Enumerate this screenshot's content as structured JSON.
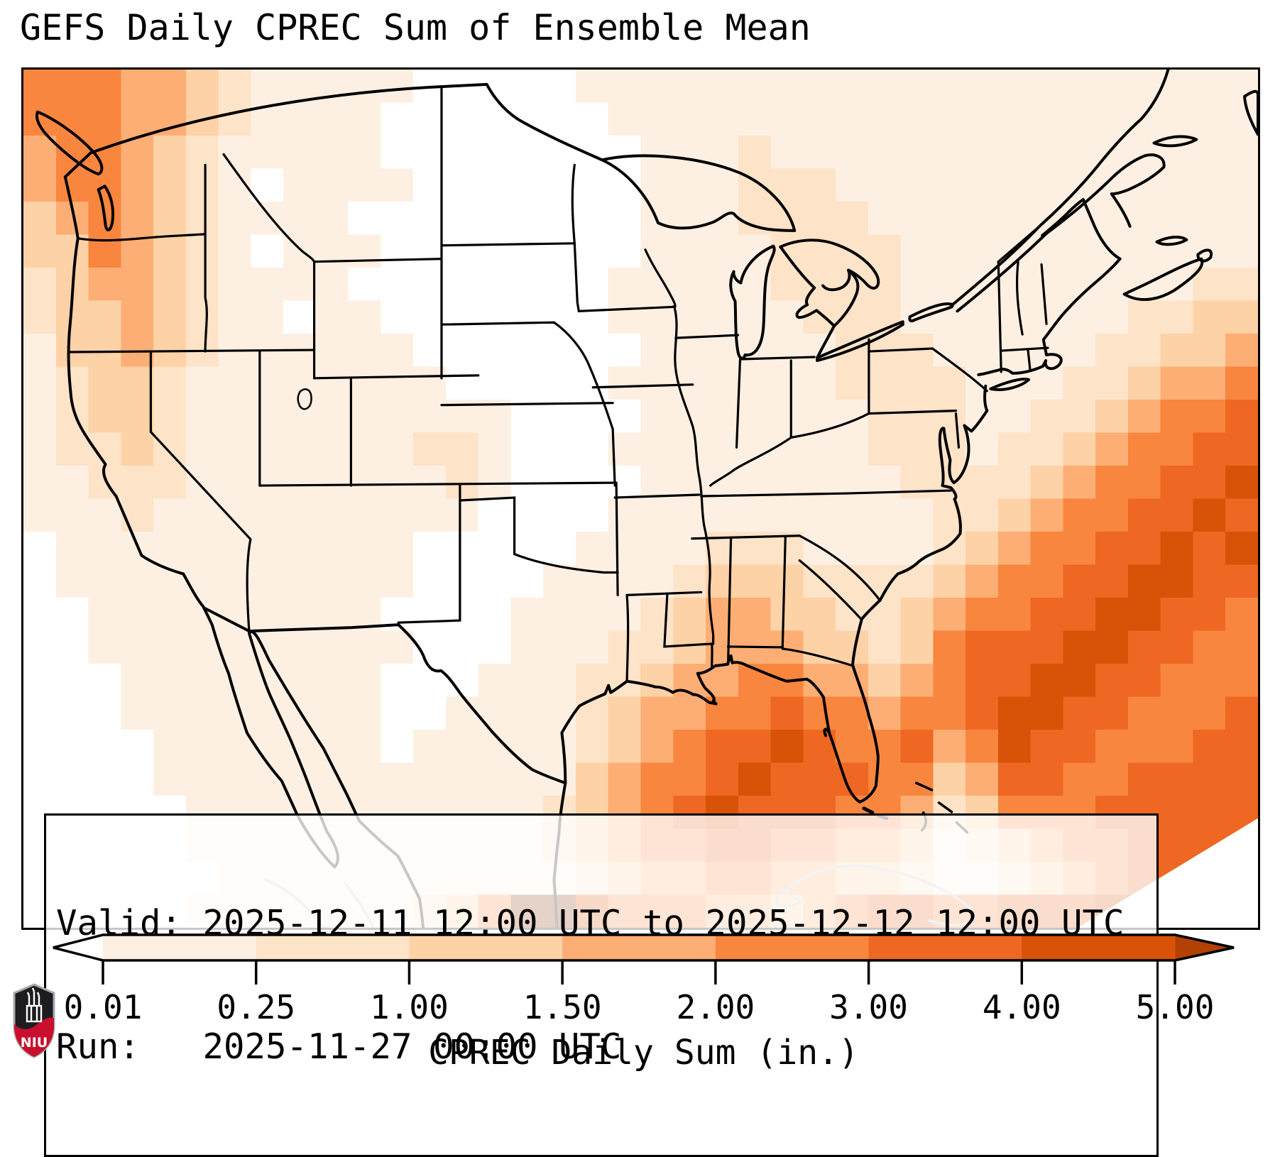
{
  "title": "GEFS Daily CPREC Sum of Ensemble Mean",
  "info_box": {
    "line1": "Valid: 2025-12-11 12:00 UTC to 2025-12-12 12:00 UTC",
    "line2": "Run:   2025-11-27 00:00 UTC"
  },
  "colorbar": {
    "label": "CPREC Daily Sum (in.)",
    "tick_labels": [
      "0.01",
      "0.25",
      "1.00",
      "1.50",
      "2.00",
      "3.00",
      "4.00",
      "5.00"
    ],
    "over_color": "#b34103",
    "outline_color": "#000000"
  },
  "map": {
    "us_border_color": "#000000",
    "foreign_border_color": "#c9c9c9",
    "precip_palette": [
      "#ffffff",
      "#fdf0e2",
      "#fde3c8",
      "#fdd2a6",
      "#fdae74",
      "#f8863f",
      "#ee6723",
      "#d85207",
      "#8c3804"
    ],
    "precip_grid": {
      "cols": 38,
      "rows": 26,
      "levels": [
        "55544321111100000111111111111111111111",
        "55544321111000000011111111111111111111",
        "45543211111000000001112111111111111111",
        "45543210111100000001112221111111111111",
        "34543211110000000001112222111111111111",
        "33543210111000000001111222211111111111",
        "23443211110000000011111222211111111122",
        "23343211011000000011111122211111112233",
        "13343211111100000001111112221111122334",
        "12332111111110000011111112222111223445",
        "12332111111111100001111111222112234556",
        "12232111111122100011111111222122345566",
        "11222111111112100001111111122223455667",
        "11121111111111000011111111112234556676",
        "01111111111100000111122211112345566767",
        "01111111111100001111233322223455667766",
        "00111111111000011112344332234556677665",
        "00111111111100011122344433235666776655",
        "00011111111000111223445544345667766555",
        "00011111111001111234455655455677665556",
        "00001111111011111234566765564576655566",
        "00001111111111111345567666553466556666",
        "00000111111111112345676665542355566666",
        "00000111111111112345566554431234556666",
        "00000011111111111234455443321123456675",
        "00000111111123588755544345665566677753"
      ]
    }
  },
  "logo": {
    "text": "NIU",
    "shield_color": "#1d1d1f",
    "band_color": "#c8102e",
    "border_color": "#a7a9ac"
  }
}
